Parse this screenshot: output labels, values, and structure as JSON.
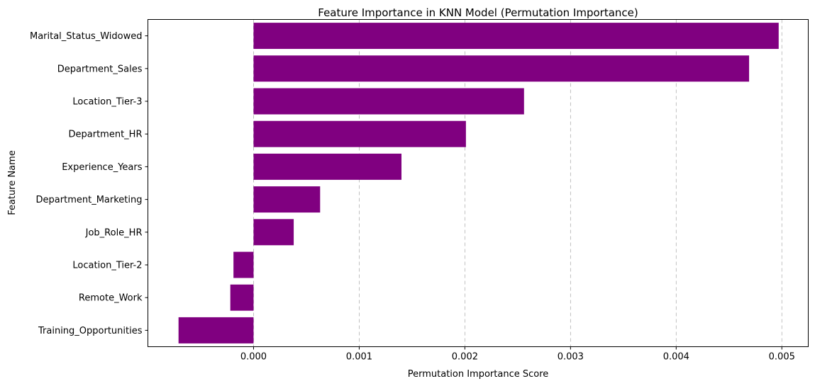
{
  "chart_data": {
    "type": "bar",
    "orientation": "horizontal",
    "title": "Feature Importance in KNN Model (Permutation Importance)",
    "xlabel": "Permutation Importance Score",
    "ylabel": "Feature Name",
    "categories": [
      "Marital_Status_Widowed",
      "Department_Sales",
      "Location_Tier-3",
      "Department_HR",
      "Experience_Years",
      "Department_Marketing",
      "Job_Role_HR",
      "Location_Tier-2",
      "Remote_Work",
      "Training_Opportunities"
    ],
    "values": [
      0.00497,
      0.00469,
      0.00256,
      0.00201,
      0.0014,
      0.00063,
      0.00038,
      -0.00019,
      -0.00022,
      -0.00071
    ],
    "xlim": [
      -0.001,
      0.00525
    ],
    "xticks": [
      0.0,
      0.001,
      0.002,
      0.003,
      0.004,
      0.005
    ],
    "xtick_labels": [
      "0.000",
      "0.001",
      "0.002",
      "0.003",
      "0.004",
      "0.005"
    ],
    "grid": "x-dashed",
    "bar_color": "#800080"
  }
}
